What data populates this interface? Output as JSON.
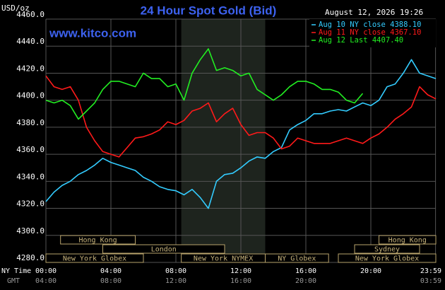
{
  "chart_data": {
    "type": "line",
    "title": "24 Hour Spot Gold (Bid)",
    "source": "www.kitco.com",
    "timestamp": "August 12, 2026 19:26",
    "y_label": "USD/oz",
    "x_row_labels": [
      "NY Time",
      "GMT"
    ],
    "xlim": [
      0,
      24
    ],
    "ylim": [
      4280,
      4460
    ],
    "yticks": [
      {
        "value": 4280,
        "label": "4280.0"
      },
      {
        "value": 4300,
        "label": "4300.0"
      },
      {
        "value": 4320,
        "label": "4320.0"
      },
      {
        "value": 4340,
        "label": "4340.0"
      },
      {
        "value": 4360,
        "label": "4360.0"
      },
      {
        "value": 4380,
        "label": "4380.0"
      },
      {
        "value": 4400,
        "label": "4400.0"
      },
      {
        "value": 4420,
        "label": "4420.0"
      },
      {
        "value": 4440,
        "label": "4440.0"
      },
      {
        "value": 4460,
        "label": "4460.0"
      }
    ],
    "xticks": [
      {
        "value": 0,
        "label": "00:00"
      },
      {
        "value": 4,
        "label": "04:00"
      },
      {
        "value": 8,
        "label": "08:00"
      },
      {
        "value": 12,
        "label": "12:00"
      },
      {
        "value": 16,
        "label": "16:00"
      },
      {
        "value": 20,
        "label": "20:00"
      },
      {
        "value": 23.983,
        "label": "23:59"
      }
    ],
    "gmt_tick_labels": [
      "04:00",
      "08:00",
      "12:00",
      "16:00",
      "20:00",
      null,
      "03:59"
    ],
    "grid": true,
    "highlight": [
      8.333,
      13.5
    ],
    "sessions": [
      [
        {
          "label": "Hong Kong",
          "start": 0.9,
          "end": 5.5
        },
        {
          "label": "Hong Kong",
          "start": 20.5,
          "end": 24
        }
      ],
      [
        {
          "label": "London",
          "start": 3.5,
          "end": 11
        },
        {
          "label": "Sydney",
          "start": 19,
          "end": 23
        }
      ],
      [
        {
          "label": "New York Globex",
          "start": 0,
          "end": 6
        },
        {
          "label": "New York NYMEX",
          "start": 8.333,
          "end": 13.5
        },
        {
          "label": "NY Globex",
          "start": 13.5,
          "end": 17.4
        },
        {
          "label": "New York Globex",
          "start": 18,
          "end": 24
        }
      ]
    ],
    "x": [
      0,
      0.5,
      1,
      1.5,
      2,
      2.5,
      3,
      3.5,
      4,
      4.5,
      5,
      5.5,
      6,
      6.5,
      7,
      7.5,
      8,
      8.5,
      9,
      9.5,
      10,
      10.5,
      11,
      11.5,
      12,
      12.5,
      13,
      13.5,
      14,
      14.5,
      15,
      15.5,
      16,
      16.5,
      17,
      17.5,
      18,
      18.5,
      19,
      19.5,
      20,
      20.5,
      21,
      21.5,
      22,
      22.5,
      23,
      23.5,
      24
    ],
    "series": [
      {
        "name": "Aug 10 NY close 4388.10",
        "color": "#33ccff",
        "values": [
          4325,
          4332,
          4337,
          4340,
          4345,
          4348,
          4352,
          4357,
          4354,
          4352,
          4350,
          4348,
          4343,
          4340,
          4336,
          4334,
          4333,
          4330,
          4334,
          4328,
          4320,
          4340,
          4345,
          4346,
          4350,
          4355,
          4358,
          4357,
          4362,
          4365,
          4378,
          4382,
          4385,
          4390,
          4390,
          4392,
          4393,
          4392,
          4395,
          4398,
          4396,
          4400,
          4410,
          4412,
          4420,
          4430,
          4420,
          4418,
          4416
        ]
      },
      {
        "name": "Aug 11 NY close 4367.10",
        "color": "#ff1a1a",
        "values": [
          4418,
          4410,
          4408,
          4410,
          4400,
          4380,
          4370,
          4362,
          4360,
          4358,
          4365,
          4372,
          4373,
          4375,
          4378,
          4384,
          4382,
          4385,
          4392,
          4394,
          4398,
          4384,
          4390,
          4394,
          4382,
          4374,
          4376,
          4376,
          4372,
          4364,
          4366,
          4372,
          4370,
          4368,
          4368,
          4368,
          4370,
          4372,
          4370,
          4368,
          4372,
          4375,
          4380,
          4386,
          4390,
          4395,
          4410,
          4404,
          4401
        ]
      },
      {
        "name": "Aug 12 Last 4407.40",
        "color": "#22ee22",
        "values": [
          4400,
          4398,
          4400,
          4396,
          4386,
          4392,
          4398,
          4408,
          4414,
          4414,
          4412,
          4410,
          4420,
          4416,
          4416,
          4410,
          4412,
          4400,
          4420,
          4430,
          4438,
          4422,
          4424,
          4422,
          4418,
          4420,
          4408,
          4404,
          4400,
          4404,
          4410,
          4414,
          4414,
          4412,
          4408,
          4408,
          4406,
          4400,
          4398,
          4405,
          null,
          null,
          null,
          null,
          null,
          null,
          null,
          null,
          null
        ]
      }
    ]
  }
}
